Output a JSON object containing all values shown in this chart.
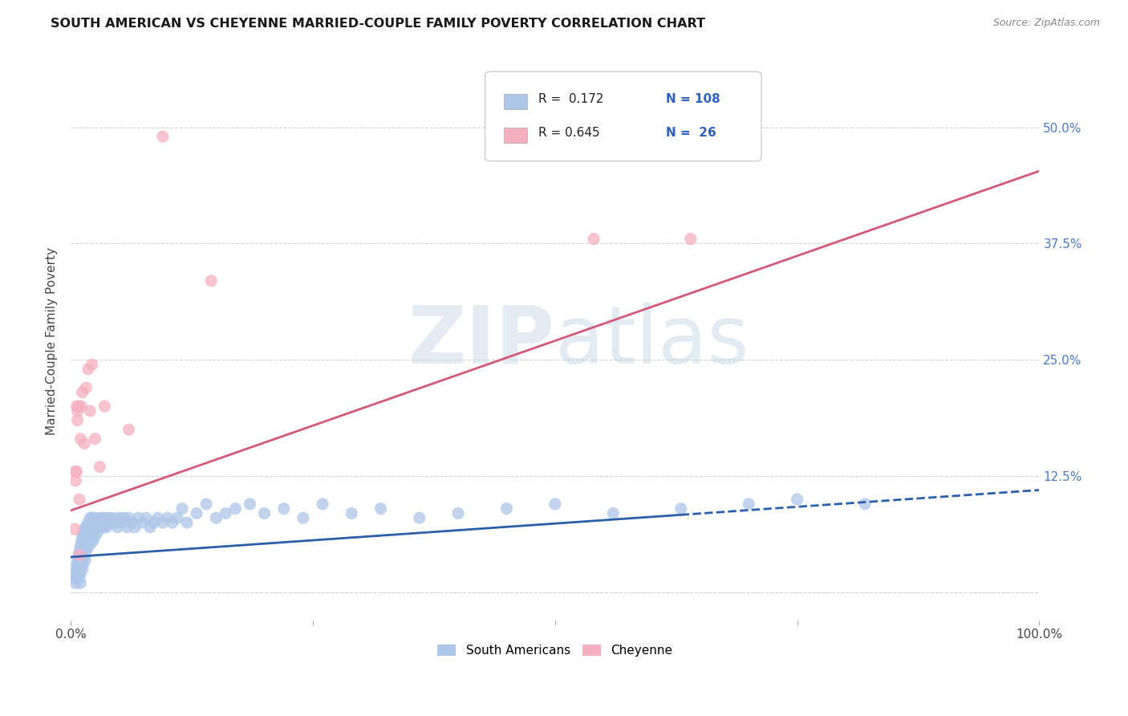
{
  "title": "SOUTH AMERICAN VS CHEYENNE MARRIED-COUPLE FAMILY POVERTY CORRELATION CHART",
  "source": "Source: ZipAtlas.com",
  "ylabel": "Married-Couple Family Poverty",
  "xlim": [
    0.0,
    1.0
  ],
  "ylim": [
    -0.03,
    0.57
  ],
  "yticks": [
    0.0,
    0.125,
    0.25,
    0.375,
    0.5
  ],
  "ytick_labels_right": [
    "",
    "12.5%",
    "25.0%",
    "37.5%",
    "50.0%"
  ],
  "xticks": [
    0.0,
    0.25,
    0.5,
    0.75,
    1.0
  ],
  "xtick_labels": [
    "0.0%",
    "",
    "",
    "",
    "100.0%"
  ],
  "r_blue": 0.172,
  "n_blue": 108,
  "r_pink": 0.645,
  "n_pink": 26,
  "blue_color": "#aec6e8",
  "pink_color": "#f5afc0",
  "blue_line_color": "#2c5faa",
  "pink_line_color": "#d45878",
  "watermark_zip": "ZIP",
  "watermark_atlas": "atlas",
  "legend_blue_label": "South Americans",
  "legend_pink_label": "Cheyenne",
  "blue_line_solid_end": 0.63,
  "blue_line_intercept": 0.038,
  "blue_line_slope": 0.072,
  "pink_line_intercept": 0.088,
  "pink_line_slope": 0.365,
  "blue_x": [
    0.005,
    0.005,
    0.005,
    0.006,
    0.006,
    0.007,
    0.007,
    0.007,
    0.008,
    0.008,
    0.009,
    0.009,
    0.009,
    0.01,
    0.01,
    0.01,
    0.01,
    0.01,
    0.011,
    0.011,
    0.012,
    0.012,
    0.012,
    0.013,
    0.013,
    0.013,
    0.014,
    0.014,
    0.015,
    0.015,
    0.015,
    0.016,
    0.016,
    0.017,
    0.017,
    0.018,
    0.018,
    0.019,
    0.019,
    0.02,
    0.02,
    0.021,
    0.021,
    0.022,
    0.022,
    0.023,
    0.023,
    0.024,
    0.025,
    0.025,
    0.026,
    0.027,
    0.028,
    0.029,
    0.03,
    0.031,
    0.032,
    0.033,
    0.034,
    0.035,
    0.036,
    0.037,
    0.038,
    0.04,
    0.042,
    0.044,
    0.046,
    0.048,
    0.05,
    0.052,
    0.055,
    0.058,
    0.06,
    0.063,
    0.066,
    0.07,
    0.074,
    0.078,
    0.082,
    0.086,
    0.09,
    0.095,
    0.1,
    0.105,
    0.11,
    0.115,
    0.12,
    0.13,
    0.14,
    0.15,
    0.16,
    0.17,
    0.185,
    0.2,
    0.22,
    0.24,
    0.26,
    0.29,
    0.32,
    0.36,
    0.4,
    0.45,
    0.5,
    0.56,
    0.63,
    0.7,
    0.75,
    0.82
  ],
  "blue_y": [
    0.02,
    0.015,
    0.01,
    0.03,
    0.025,
    0.035,
    0.025,
    0.015,
    0.04,
    0.02,
    0.045,
    0.035,
    0.015,
    0.05,
    0.04,
    0.03,
    0.02,
    0.01,
    0.055,
    0.035,
    0.06,
    0.045,
    0.025,
    0.065,
    0.05,
    0.03,
    0.06,
    0.04,
    0.07,
    0.055,
    0.035,
    0.065,
    0.045,
    0.07,
    0.05,
    0.075,
    0.055,
    0.07,
    0.05,
    0.08,
    0.06,
    0.075,
    0.055,
    0.08,
    0.06,
    0.075,
    0.055,
    0.07,
    0.08,
    0.06,
    0.075,
    0.07,
    0.065,
    0.075,
    0.08,
    0.07,
    0.075,
    0.08,
    0.07,
    0.075,
    0.08,
    0.07,
    0.075,
    0.08,
    0.075,
    0.08,
    0.075,
    0.07,
    0.08,
    0.075,
    0.08,
    0.07,
    0.08,
    0.075,
    0.07,
    0.08,
    0.075,
    0.08,
    0.07,
    0.075,
    0.08,
    0.075,
    0.08,
    0.075,
    0.08,
    0.09,
    0.075,
    0.085,
    0.095,
    0.08,
    0.085,
    0.09,
    0.095,
    0.085,
    0.09,
    0.08,
    0.095,
    0.085,
    0.09,
    0.08,
    0.085,
    0.09,
    0.095,
    0.085,
    0.09,
    0.095,
    0.1,
    0.095
  ],
  "pink_x": [
    0.004,
    0.005,
    0.005,
    0.006,
    0.006,
    0.007,
    0.007,
    0.008,
    0.009,
    0.009,
    0.01,
    0.011,
    0.012,
    0.014,
    0.016,
    0.018,
    0.02,
    0.022,
    0.025,
    0.03,
    0.035,
    0.06,
    0.095,
    0.145,
    0.54,
    0.64
  ],
  "pink_y": [
    0.068,
    0.13,
    0.12,
    0.2,
    0.13,
    0.195,
    0.185,
    0.2,
    0.1,
    0.04,
    0.165,
    0.2,
    0.215,
    0.16,
    0.22,
    0.24,
    0.195,
    0.245,
    0.165,
    0.135,
    0.2,
    0.175,
    0.49,
    0.335,
    0.38,
    0.38
  ]
}
